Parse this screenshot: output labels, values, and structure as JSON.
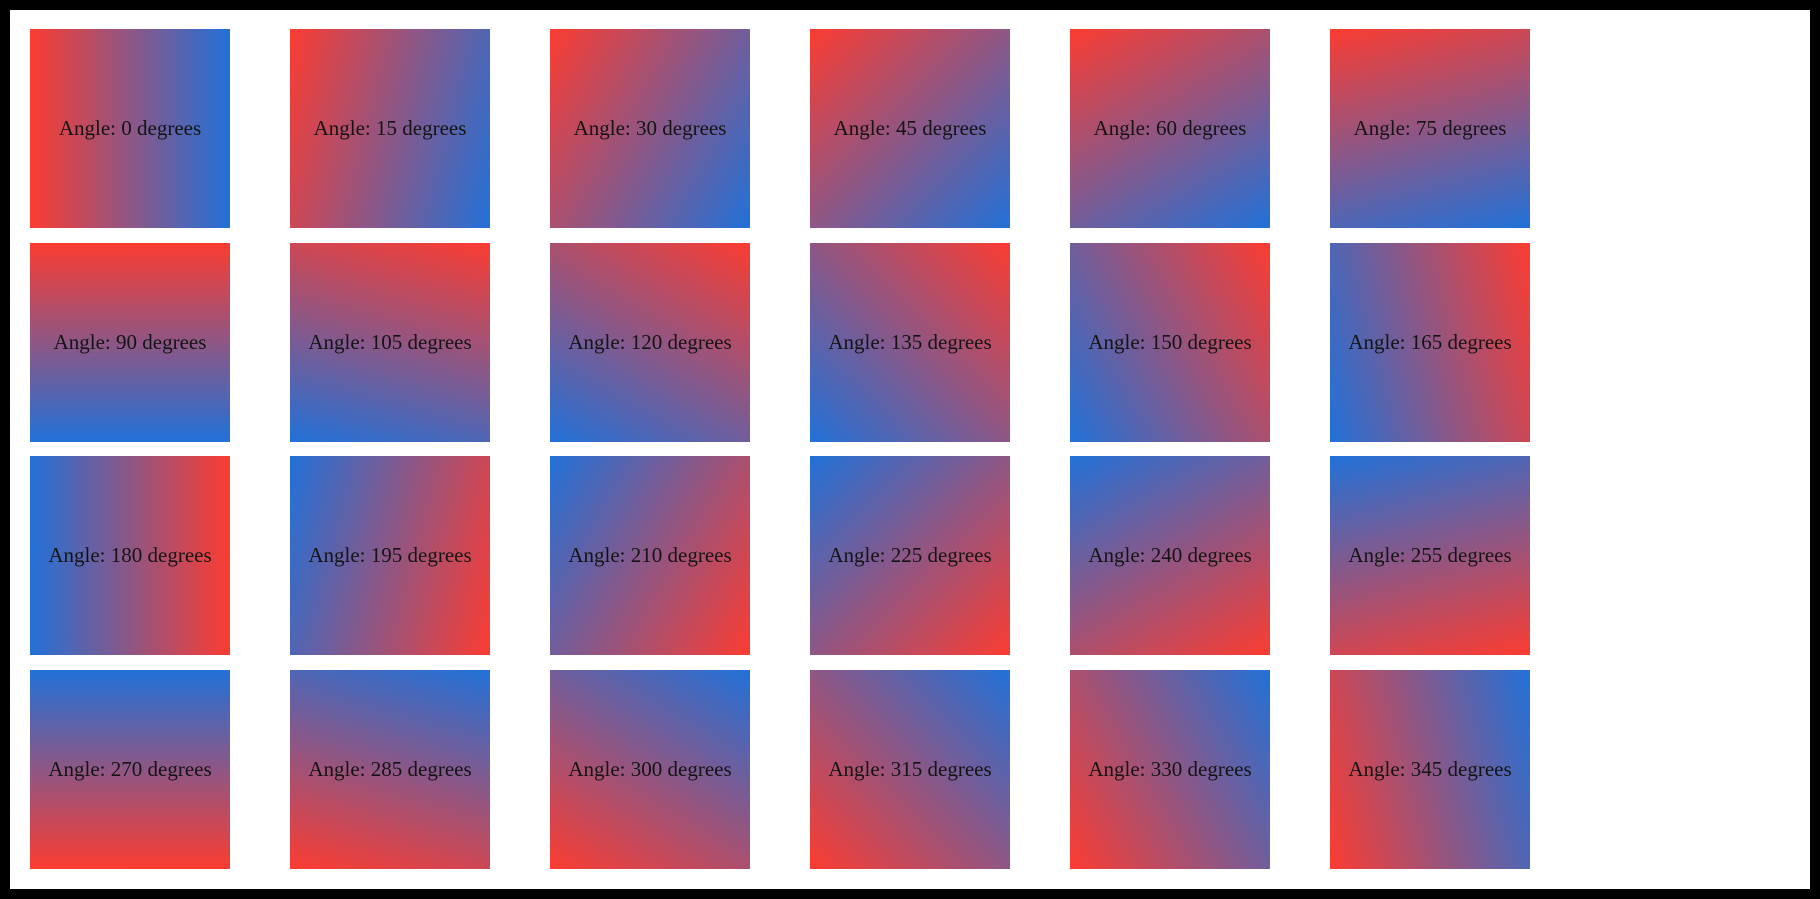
{
  "page": {
    "frame_color": "#000000",
    "canvas_color": "#ffffff"
  },
  "colors": {
    "gradient_start_red": "#fb3c31",
    "gradient_end_blue": "#2171d8",
    "label_text": "#141414"
  },
  "grid": {
    "rows": 4,
    "columns": 6,
    "angle_step_degrees": 15,
    "tiles": [
      {
        "angle": 0,
        "label": "Angle: 0 degrees"
      },
      {
        "angle": 15,
        "label": "Angle: 15 degrees"
      },
      {
        "angle": 30,
        "label": "Angle: 30 degrees"
      },
      {
        "angle": 45,
        "label": "Angle: 45 degrees"
      },
      {
        "angle": 60,
        "label": "Angle: 60 degrees"
      },
      {
        "angle": 75,
        "label": "Angle: 75 degrees"
      },
      {
        "angle": 90,
        "label": "Angle: 90 degrees"
      },
      {
        "angle": 105,
        "label": "Angle: 105 degrees"
      },
      {
        "angle": 120,
        "label": "Angle: 120 degrees"
      },
      {
        "angle": 135,
        "label": "Angle: 135 degrees"
      },
      {
        "angle": 150,
        "label": "Angle: 150 degrees"
      },
      {
        "angle": 165,
        "label": "Angle: 165 degrees"
      },
      {
        "angle": 180,
        "label": "Angle: 180 degrees"
      },
      {
        "angle": 195,
        "label": "Angle: 195 degrees"
      },
      {
        "angle": 210,
        "label": "Angle: 210 degrees"
      },
      {
        "angle": 225,
        "label": "Angle: 225 degrees"
      },
      {
        "angle": 240,
        "label": "Angle: 240 degrees"
      },
      {
        "angle": 255,
        "label": "Angle: 255 degrees"
      },
      {
        "angle": 270,
        "label": "Angle: 270 degrees"
      },
      {
        "angle": 285,
        "label": "Angle: 285 degrees"
      },
      {
        "angle": 300,
        "label": "Angle: 300 degrees"
      },
      {
        "angle": 315,
        "label": "Angle: 315 degrees"
      },
      {
        "angle": 330,
        "label": "Angle: 330 degrees"
      },
      {
        "angle": 345,
        "label": "Angle: 345 degrees"
      }
    ]
  }
}
